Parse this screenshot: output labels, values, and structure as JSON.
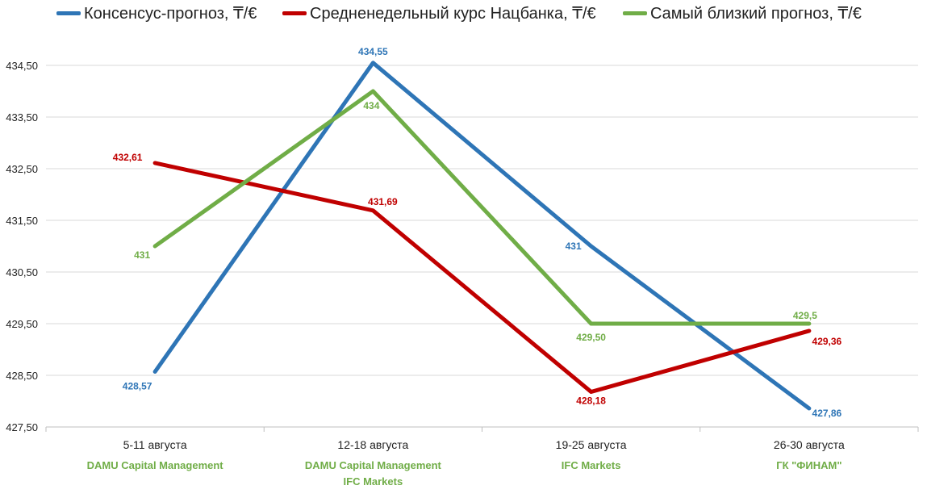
{
  "chart_data": {
    "type": "line",
    "title": "",
    "xlabel": "",
    "ylabel": "",
    "categories": [
      "5-11 августа",
      "12-18 августа",
      "19-25 августа",
      "26-30 августа"
    ],
    "category_sublabels": [
      [
        "DAMU Capital Management"
      ],
      [
        "DAMU Capital Management",
        "IFC Markets"
      ],
      [
        "IFC Markets"
      ],
      [
        "ГК \"ФИНАМ\""
      ]
    ],
    "y_ticks": [
      "427,50",
      "428,50",
      "429,50",
      "430,50",
      "431,50",
      "432,50",
      "433,50",
      "434,50"
    ],
    "ylim": [
      427.5,
      434.9
    ],
    "grid": "horizontal",
    "legend_position": "top",
    "series": [
      {
        "name": "Консенсус-прогноз, ₸/€",
        "color": "#2e75b6",
        "values": [
          428.57,
          434.55,
          431,
          427.86
        ],
        "labels": [
          "428,57",
          "434,55",
          "431",
          "427,86"
        ]
      },
      {
        "name": "Средненедельный курс Нацбанка, ₸/€",
        "color": "#c00000",
        "values": [
          432.61,
          431.69,
          428.18,
          429.36
        ],
        "labels": [
          "432,61",
          "431,69",
          "428,18",
          "429,36"
        ]
      },
      {
        "name": "Самый близкий прогноз, ₸/€",
        "color": "#70ad47",
        "values": [
          431,
          434,
          429.5,
          429.5
        ],
        "labels": [
          "431",
          "434",
          "429,50",
          "429,5"
        ]
      }
    ]
  }
}
